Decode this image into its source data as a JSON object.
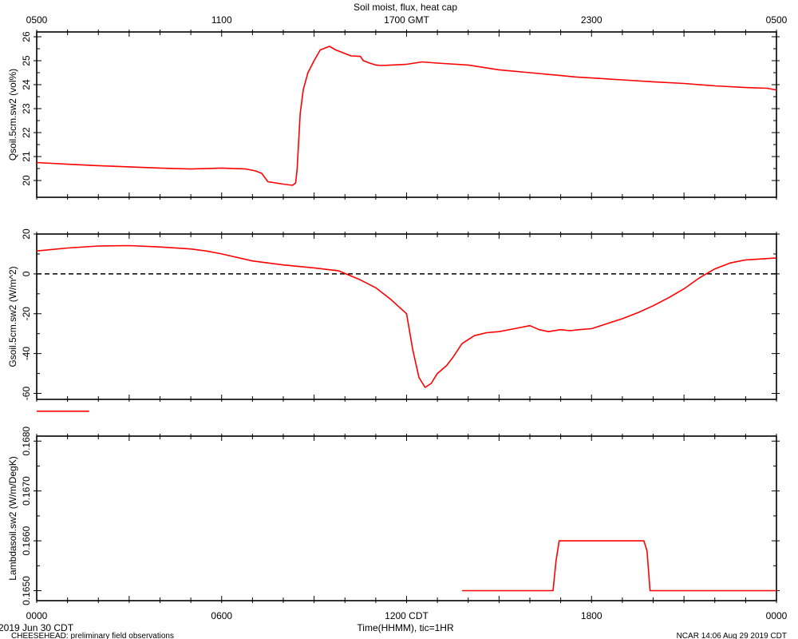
{
  "title": "Soil moist, flux, heat cap",
  "top_axis": {
    "ticks": [
      "0500",
      "1100",
      "1700 GMT",
      "2300",
      "0500"
    ]
  },
  "bottom_axis": {
    "ticks": [
      "0000",
      "0600",
      "1200 CDT",
      "1800",
      "0000"
    ],
    "label": "Time(HHMM), tic=1HR"
  },
  "footer": {
    "date": "2019 Jun 30 CDT",
    "project": "CHEESEHEAD: preliminary field observations",
    "credit": "NCAR 14:06 Aug 29 2019 CDT"
  },
  "colors": {
    "series": "#ff0000",
    "axes": "#000000"
  },
  "chart_data": [
    {
      "type": "line",
      "ylabel": "Qsoil.5cm.sw2 (vol%)",
      "ylim": [
        19.3,
        26.2
      ],
      "yticks": [
        20,
        21,
        22,
        23,
        24,
        25,
        26
      ],
      "ytick_labels": [
        "20",
        "21",
        "22",
        "23",
        "24",
        "25",
        "26"
      ],
      "xlim": [
        0,
        24
      ],
      "x_unit": "hours since 0000 CDT",
      "series": [
        {
          "x": [
            0,
            1,
            2,
            3,
            4,
            5,
            6,
            6.8,
            7.1,
            7.3,
            7.5,
            8,
            8.3,
            8.4,
            8.45,
            8.55,
            8.65,
            8.8,
            9.0,
            9.2,
            9.5,
            9.7,
            10.2,
            10.5,
            10.6,
            10.8,
            11.0,
            11.2,
            11.5,
            12.0,
            12.5,
            13,
            14,
            15,
            16,
            17,
            17.5,
            18,
            19,
            20,
            21,
            22,
            23,
            23.7,
            24
          ],
          "y": [
            20.75,
            20.68,
            20.62,
            20.57,
            20.52,
            20.48,
            20.52,
            20.48,
            20.4,
            20.3,
            19.95,
            19.85,
            19.8,
            19.9,
            20.5,
            22.8,
            23.8,
            24.5,
            25.0,
            25.45,
            25.6,
            25.45,
            25.2,
            25.18,
            25.0,
            24.9,
            24.82,
            24.8,
            24.82,
            24.85,
            24.95,
            24.9,
            24.82,
            24.62,
            24.5,
            24.38,
            24.32,
            24.28,
            24.2,
            24.12,
            24.05,
            23.95,
            23.88,
            23.85,
            23.78
          ]
        }
      ]
    },
    {
      "type": "line",
      "ylabel": "Gsoil.5cm.sw2 (W/m^2)",
      "ylim": [
        -63,
        20
      ],
      "yticks": [
        20,
        0,
        -20,
        -40,
        -60
      ],
      "ytick_labels": [
        "20",
        "0",
        "-20",
        "-40",
        "-60"
      ],
      "reference_line": 0,
      "xlim": [
        0,
        24
      ],
      "x_unit": "hours since 0000 CDT",
      "series": [
        {
          "x": [
            0,
            1,
            2,
            3,
            4,
            5,
            5.5,
            6,
            7,
            8,
            9,
            9.8,
            10.5,
            11,
            11.5,
            12.0,
            12.2,
            12.4,
            12.6,
            12.8,
            13.0,
            13.3,
            13.5,
            13.8,
            14.2,
            14.6,
            15,
            15.5,
            16,
            16.3,
            16.6,
            17,
            17.3,
            17.6,
            18,
            18.5,
            19,
            19.5,
            20,
            20.5,
            21,
            21.5,
            22,
            22.5,
            23,
            23.5,
            24
          ],
          "y": [
            11.5,
            13,
            14,
            14.2,
            13.5,
            12.5,
            11.5,
            10,
            6.5,
            4.5,
            3,
            1.5,
            -3,
            -7,
            -13,
            -20,
            -38,
            -52,
            -57,
            -55,
            -50,
            -46,
            -42,
            -35,
            -31,
            -29.5,
            -29,
            -27.5,
            -26,
            -28,
            -29,
            -28,
            -28.5,
            -28,
            -27.5,
            -25,
            -22.5,
            -19.5,
            -16,
            -12,
            -7.5,
            -2,
            2.5,
            5.5,
            7,
            7.5,
            8
          ]
        }
      ]
    },
    {
      "type": "line",
      "ylabel": "Lambdasoil.sw2 (W/m/DegK)",
      "ylim": [
        0.1648,
        0.1681
      ],
      "yticks": [
        0.165,
        0.166,
        0.167,
        0.168
      ],
      "ytick_labels": [
        "0.1650",
        "0.1660",
        "0.1670",
        "0.1680"
      ],
      "xlim": [
        0,
        24
      ],
      "x_unit": "hours since 0000 CDT",
      "series": [
        {
          "segments": [
            {
              "x": [
                0,
                1.7
              ],
              "y": [
                0.1686,
                0.1686
              ]
            },
            {
              "x": [
                13.8,
                16.75,
                16.85,
                16.95,
                19.7,
                19.8,
                19.9,
                24
              ],
              "y": [
                0.165,
                0.165,
                0.1656,
                0.166,
                0.166,
                0.1658,
                0.165,
                0.165
              ]
            }
          ]
        }
      ]
    }
  ]
}
